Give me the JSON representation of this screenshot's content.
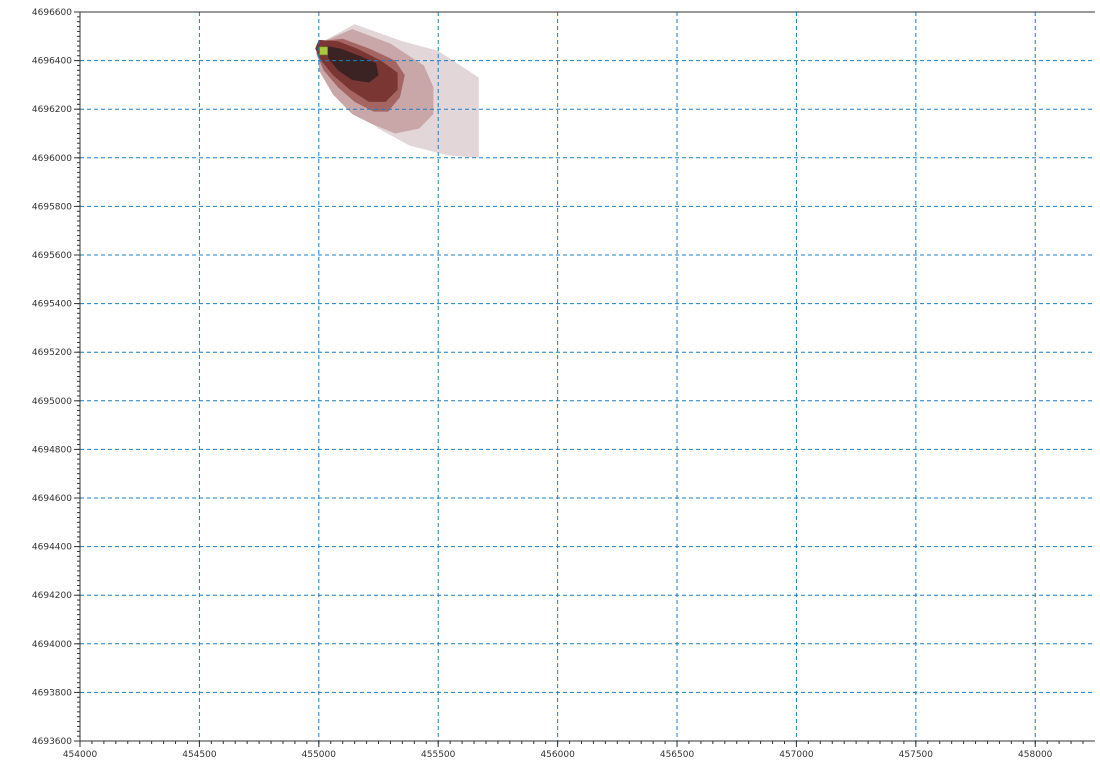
{
  "chart_data": {
    "type": "contour-map",
    "x_ticks": [
      454000,
      454500,
      455000,
      455500,
      456000,
      456500,
      457000,
      457500,
      458000
    ],
    "y_ticks": [
      4696600,
      4696400,
      4696200,
      4696000,
      4695800,
      4695600,
      4695400,
      4695200,
      4695000,
      4694800,
      4694600,
      4694400,
      4694200,
      4694000,
      4693800,
      4693600
    ],
    "xlim": [
      454000,
      458200
    ],
    "ylim": [
      4693600,
      4696600
    ],
    "grid": true,
    "grid_color": "#1a7fc4",
    "axis_color": "#333333",
    "source_marker": {
      "x": 455020,
      "y": 4696440,
      "color": "#a8c93a"
    },
    "plume_levels": [
      {
        "color": "#e2d6d8",
        "polygon": [
          [
            455000,
            4696470
          ],
          [
            455150,
            4696550
          ],
          [
            455350,
            4696480
          ],
          [
            455500,
            4696440
          ],
          [
            455670,
            4696330
          ],
          [
            455670,
            4696000
          ],
          [
            455540,
            4696010
          ],
          [
            455380,
            4696050
          ],
          [
            455250,
            4696120
          ],
          [
            455150,
            4696200
          ],
          [
            455080,
            4696260
          ],
          [
            455020,
            4696340
          ],
          [
            454990,
            4696420
          ]
        ]
      },
      {
        "color": "#c9a7a9",
        "polygon": [
          [
            455000,
            4696470
          ],
          [
            455140,
            4696530
          ],
          [
            455300,
            4696470
          ],
          [
            455440,
            4696380
          ],
          [
            455480,
            4696290
          ],
          [
            455480,
            4696180
          ],
          [
            455420,
            4696120
          ],
          [
            455320,
            4696100
          ],
          [
            455220,
            4696140
          ],
          [
            455140,
            4696180
          ],
          [
            455060,
            4696260
          ],
          [
            455000,
            4696360
          ]
        ]
      },
      {
        "color": "#a56663",
        "polygon": [
          [
            455000,
            4696480
          ],
          [
            455100,
            4696490
          ],
          [
            455210,
            4696450
          ],
          [
            455320,
            4696400
          ],
          [
            455360,
            4696340
          ],
          [
            455340,
            4696250
          ],
          [
            455290,
            4696190
          ],
          [
            455230,
            4696190
          ],
          [
            455150,
            4696230
          ],
          [
            455080,
            4696290
          ],
          [
            455020,
            4696360
          ],
          [
            454990,
            4696430
          ]
        ]
      },
      {
        "color": "#7a3633",
        "polygon": [
          [
            455000,
            4696485
          ],
          [
            455080,
            4696480
          ],
          [
            455160,
            4696450
          ],
          [
            455260,
            4696400
          ],
          [
            455330,
            4696350
          ],
          [
            455330,
            4696280
          ],
          [
            455280,
            4696230
          ],
          [
            455210,
            4696230
          ],
          [
            455130,
            4696280
          ],
          [
            455060,
            4696340
          ],
          [
            455010,
            4696400
          ],
          [
            454985,
            4696450
          ]
        ]
      },
      {
        "color": "#3b2223",
        "polygon": [
          [
            455030,
            4696460
          ],
          [
            455090,
            4696450
          ],
          [
            455170,
            4696420
          ],
          [
            455240,
            4696390
          ],
          [
            455250,
            4696340
          ],
          [
            455210,
            4696310
          ],
          [
            455140,
            4696320
          ],
          [
            455080,
            4696360
          ],
          [
            455040,
            4696410
          ]
        ]
      }
    ]
  }
}
